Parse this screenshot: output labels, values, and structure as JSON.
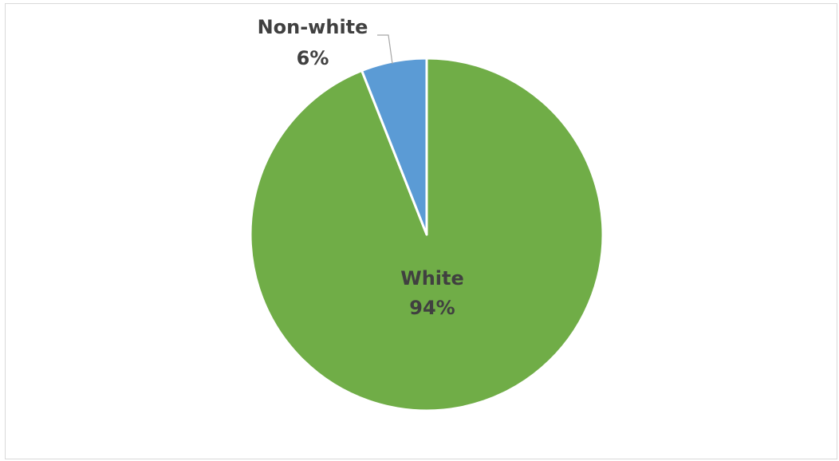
{
  "chart_data": {
    "type": "pie",
    "slices": [
      {
        "label": "White",
        "value": 94,
        "value_label": "94%",
        "color": "#70ad47"
      },
      {
        "label": "Non-white",
        "value": 6,
        "value_label": "6%",
        "color": "#5b9bd5"
      }
    ],
    "start_angle_deg": 0,
    "direction": "clockwise",
    "legend": "none"
  }
}
